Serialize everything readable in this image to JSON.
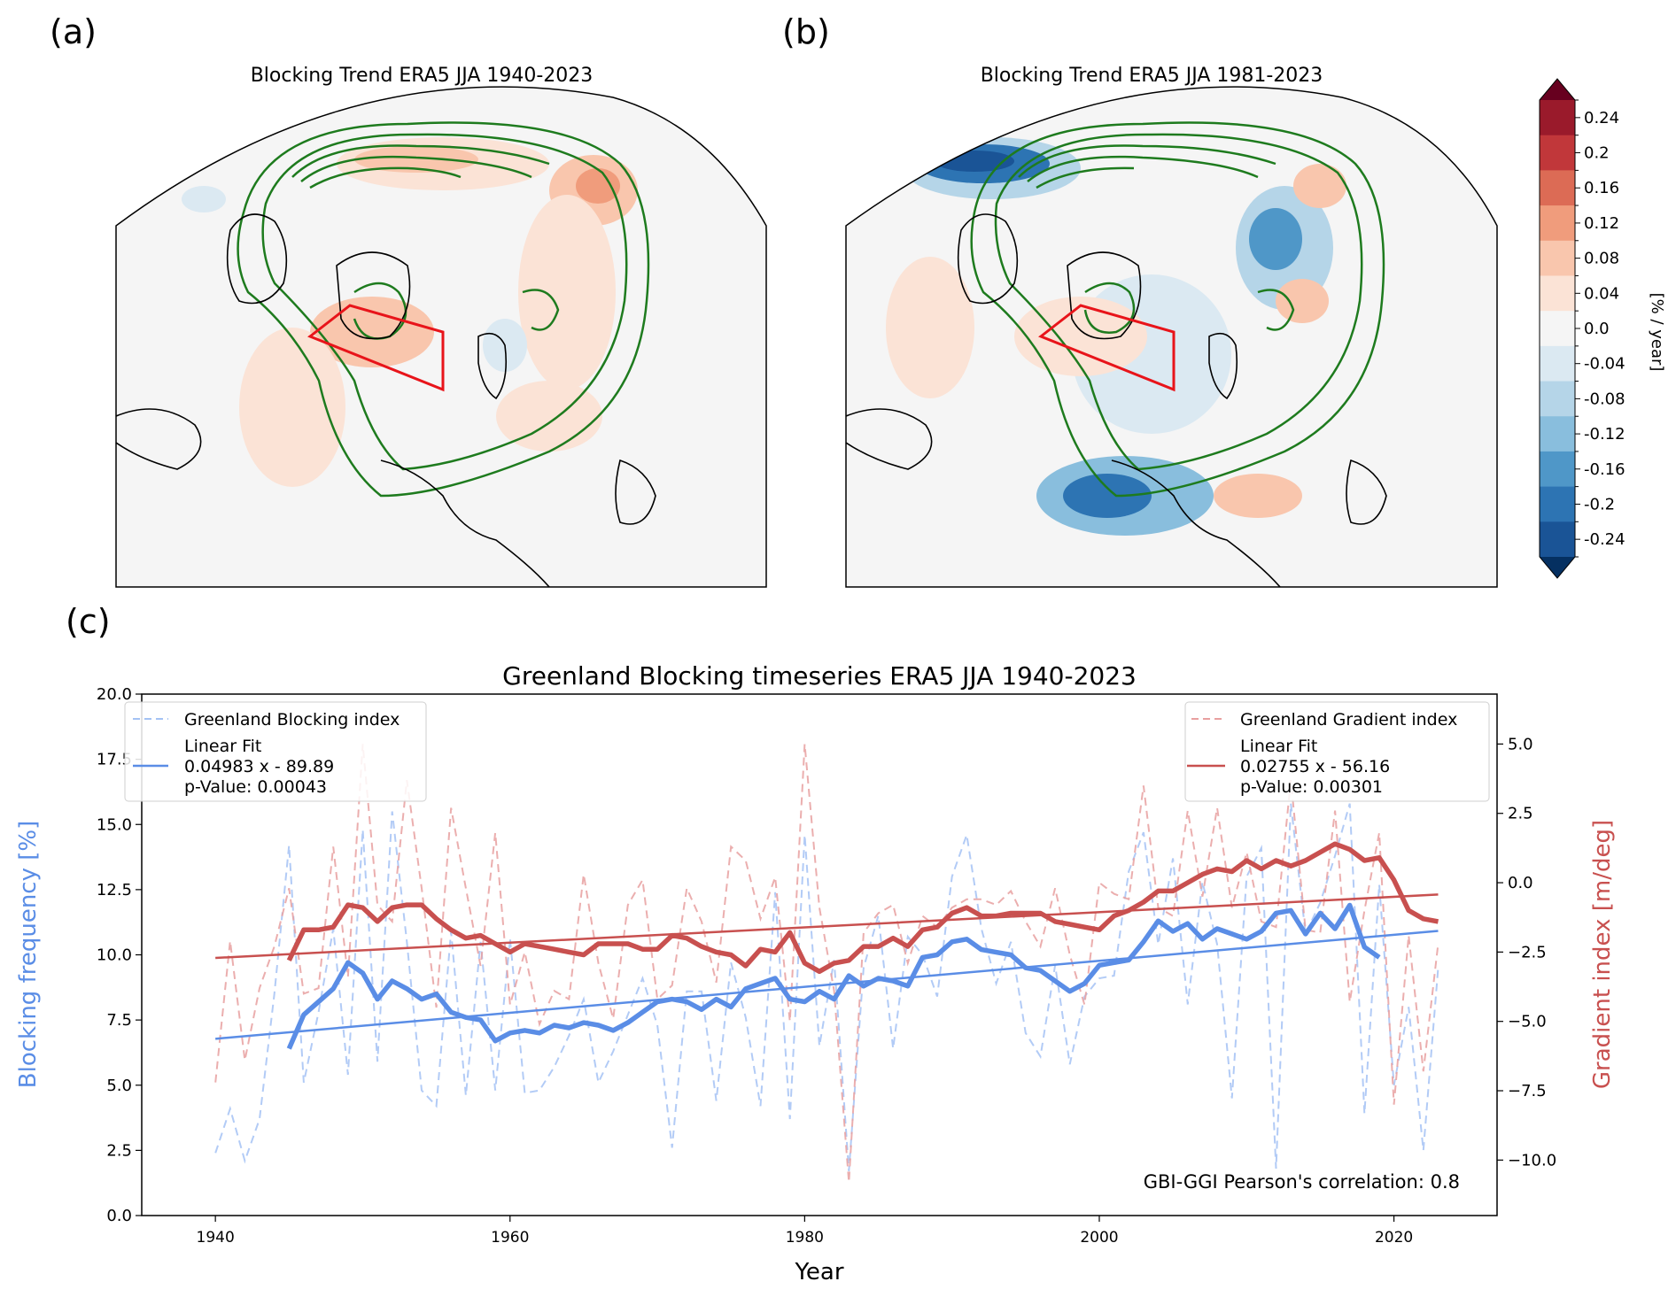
{
  "figure": {
    "panel_labels": [
      "(a)",
      "(b)",
      "(c)"
    ]
  },
  "chart_data": [
    {
      "id": "a",
      "type": "heatmap",
      "subtype": "polar-stereographic map",
      "title": "Blocking Trend ERA5 JJA 1940-2023",
      "overlays": [
        "green climatology contours",
        "red Greenland box",
        "black coastlines"
      ],
      "field_summary": "mostly weak positive trends (0.04-0.12) over Greenland box, Canada and Siberia; small weak negative areas near Scandinavia"
    },
    {
      "id": "b",
      "type": "heatmap",
      "subtype": "polar-stereographic map",
      "title": "Blocking Trend ERA5 JJA 1981-2023",
      "overlays": [
        "green climatology contours",
        "red Greenland box",
        "black coastlines"
      ],
      "field_summary": "strong negative trends (down to -0.24) over North Pacific/Alaska and Europe/Scandinavia; positive trends (0.04-0.12) over Greenland box and Siberia"
    },
    {
      "id": "colorbar",
      "type": "heatmap",
      "label": "[% / year]",
      "ticks": [
        "0.24",
        "0.2",
        "0.16",
        "0.12",
        "0.08",
        "0.04",
        "0.0",
        "-0.04",
        "-0.08",
        "-0.12",
        "-0.16",
        "-0.2",
        "-0.24"
      ],
      "levels": [
        0.26,
        0.22,
        0.18,
        0.14,
        0.1,
        0.06,
        0.02,
        -0.02,
        -0.06,
        -0.1,
        -0.14,
        -0.18,
        -0.22,
        -0.26
      ],
      "colors": [
        "#9a1a2b",
        "#c1373a",
        "#dc6b55",
        "#f09c7c",
        "#f9c6ad",
        "#fbe3d6",
        "#f5f5f5",
        "#dbe9f2",
        "#b5d5e8",
        "#89bedd",
        "#4f97c8",
        "#2d74b3",
        "#1a5496"
      ],
      "extend_colors": {
        "max": "#67001f",
        "min": "#053061"
      }
    },
    {
      "id": "c",
      "type": "line",
      "title": "Greenland Blocking timeseries ERA5 JJA 1940-2023",
      "xlabel": "Year",
      "ylabel": "Blocking frequency [%]",
      "y2label": "Gradient index [m/deg]",
      "xlim": [
        1935,
        2027
      ],
      "ylim": [
        0,
        20
      ],
      "y2lim": [
        -12.0,
        6.8
      ],
      "xticks": [
        1940,
        1960,
        1980,
        2000,
        2020
      ],
      "yticks": [
        "0.0",
        "2.5",
        "5.0",
        "7.5",
        "10.0",
        "12.5",
        "15.0",
        "17.5",
        "20.0"
      ],
      "y2ticks": [
        "−10.0",
        "−7.5",
        "−5.0",
        "−2.5",
        "0.0",
        "2.5",
        "5.0"
      ],
      "y2tick_values": [
        -10,
        -7.5,
        -5,
        -2.5,
        0,
        2.5,
        5
      ],
      "grid": false,
      "annotation": "GBI-GGI Pearson's correlation: 0.8",
      "legends": [
        {
          "position": "top-left",
          "entries": [
            {
              "label": "Greenland Blocking index",
              "style": "dashed",
              "color": "#a4c2f4"
            },
            {
              "label": "Linear Fit\n0.04983 x - 89.89\np-Value: 0.00043",
              "lines": [
                "Linear Fit",
                "0.04983 x - 89.89",
                "p-Value: 0.00043"
              ],
              "style": "solid",
              "color": "#5a8de6"
            }
          ]
        },
        {
          "position": "top-right",
          "entries": [
            {
              "label": "Greenland Gradient index",
              "style": "dashed",
              "color": "#e8a0a0"
            },
            {
              "label": "Linear Fit\n0.02755 x - 56.16\np-Value: 0.00301",
              "lines": [
                "Linear Fit",
                "0.02755 x - 56.16",
                "p-Value: 0.00301"
              ],
              "style": "solid",
              "color": "#c8504f"
            }
          ]
        }
      ],
      "x": [
        1940,
        1941,
        1942,
        1943,
        1944,
        1945,
        1946,
        1947,
        1948,
        1949,
        1950,
        1951,
        1952,
        1953,
        1954,
        1955,
        1956,
        1957,
        1958,
        1959,
        1960,
        1961,
        1962,
        1963,
        1964,
        1965,
        1966,
        1967,
        1968,
        1969,
        1970,
        1971,
        1972,
        1973,
        1974,
        1975,
        1976,
        1977,
        1978,
        1979,
        1980,
        1981,
        1982,
        1983,
        1984,
        1985,
        1986,
        1987,
        1988,
        1989,
        1990,
        1991,
        1992,
        1993,
        1994,
        1995,
        1996,
        1997,
        1998,
        1999,
        2000,
        2001,
        2002,
        2003,
        2004,
        2005,
        2006,
        2007,
        2008,
        2009,
        2010,
        2011,
        2012,
        2013,
        2014,
        2015,
        2016,
        2017,
        2018,
        2019,
        2020,
        2021,
        2022,
        2023
      ],
      "series": [
        {
          "name": "Greenland Blocking index",
          "axis": "left",
          "style": "dashed",
          "color": "#a4c2f4",
          "values": [
            2.4,
            4.1,
            2.1,
            3.7,
            8.5,
            14.2,
            5.1,
            7.8,
            11.0,
            5.4,
            14.8,
            5.9,
            15.5,
            10.5,
            4.8,
            4.2,
            10.9,
            4.6,
            10.5,
            4.8,
            10.6,
            4.7,
            4.8,
            5.7,
            6.9,
            8.3,
            5.1,
            6.3,
            7.7,
            9.1,
            7.3,
            2.6,
            8.6,
            8.6,
            4.4,
            9.7,
            7.6,
            4.2,
            12.4,
            3.7,
            14.6,
            6.5,
            9.8,
            1.7,
            9.5,
            11.5,
            6.4,
            10.7,
            10.0,
            8.4,
            13.0,
            14.6,
            11.0,
            8.9,
            10.5,
            7.0,
            6.1,
            9.6,
            5.8,
            8.4,
            9.1,
            9.2,
            13.2,
            14.7,
            10.4,
            13.7,
            8.1,
            12.8,
            10.4,
            4.5,
            13.0,
            14.1,
            1.8,
            15.8,
            10.8,
            12.0,
            13.8,
            15.8,
            3.9,
            12.7,
            5.0,
            8.0,
            2.5,
            9.5
          ]
        },
        {
          "name": "Greenland Blocking index (running mean)",
          "axis": "left",
          "style": "solid-thick",
          "color": "#5a8de6",
          "x_start": 1945,
          "values": [
            6.4,
            7.7,
            8.2,
            8.7,
            9.7,
            9.3,
            8.3,
            9.0,
            8.7,
            8.3,
            8.5,
            7.8,
            7.6,
            7.5,
            6.7,
            7.0,
            7.1,
            7.0,
            7.3,
            7.2,
            7.4,
            7.3,
            7.1,
            7.4,
            7.8,
            8.2,
            8.3,
            8.2,
            7.9,
            8.3,
            8.0,
            8.7,
            8.9,
            9.1,
            8.3,
            8.2,
            8.6,
            8.3,
            9.2,
            8.8,
            9.1,
            9.0,
            8.8,
            9.9,
            10.0,
            10.5,
            10.6,
            10.2,
            10.1,
            10.0,
            9.5,
            9.4,
            9.0,
            8.6,
            8.9,
            9.6,
            9.7,
            9.8,
            10.5,
            11.3,
            10.9,
            11.2,
            10.6,
            11.0,
            10.8,
            10.6,
            10.9,
            11.6,
            11.7,
            10.8,
            11.6,
            11.0,
            11.9,
            10.3,
            9.9
          ]
        },
        {
          "name": "Greenland Blocking linear fit",
          "axis": "left",
          "style": "solid",
          "color": "#5a8de6",
          "slope": 0.04983,
          "intercept": -89.89,
          "x_range": [
            1940,
            2023
          ]
        },
        {
          "name": "Greenland Gradient index",
          "axis": "right",
          "style": "dashed",
          "color": "#e8a0a0",
          "values": [
            -7.2,
            -2.1,
            -6.4,
            -3.8,
            -2.3,
            -0.2,
            -4.0,
            -3.8,
            1.3,
            -3.4,
            5.0,
            -0.8,
            -1.4,
            3.7,
            -0.2,
            -4.5,
            2.7,
            -0.2,
            -3.0,
            1.8,
            -4.4,
            -2.5,
            -5.1,
            -3.9,
            -4.2,
            0.3,
            -2.9,
            -4.9,
            -0.8,
            0.1,
            -4.2,
            -3.7,
            -0.2,
            -1.4,
            -3.6,
            1.3,
            0.8,
            -1.3,
            0.2,
            -5.0,
            5.0,
            -0.9,
            -3.9,
            -10.8,
            -1.8,
            -1.1,
            -0.8,
            -2.9,
            -1.2,
            -1.6,
            -0.9,
            -0.6,
            -0.6,
            -0.8,
            -0.3,
            -1.4,
            -2.3,
            -0.2,
            -2.6,
            -4.4,
            0.0,
            -0.4,
            -0.6,
            3.5,
            -0.9,
            -1.2,
            2.6,
            -0.5,
            2.7,
            -0.9,
            1.1,
            -1.4,
            -1.6,
            3.7,
            -1.7,
            -1.8,
            2.6,
            -4.3,
            -1.0,
            1.8,
            -8.0,
            -1.9,
            -6.8,
            -2.2
          ]
        },
        {
          "name": "Greenland Gradient index (running mean)",
          "axis": "right",
          "style": "solid-thick",
          "color": "#c8504f",
          "x_start": 1945,
          "values": [
            -2.8,
            -1.7,
            -1.7,
            -1.6,
            -0.8,
            -0.9,
            -1.4,
            -0.9,
            -0.8,
            -0.8,
            -1.3,
            -1.7,
            -2.0,
            -1.9,
            -2.2,
            -2.5,
            -2.2,
            -2.3,
            -2.4,
            -2.5,
            -2.6,
            -2.2,
            -2.2,
            -2.2,
            -2.4,
            -2.4,
            -1.9,
            -2.0,
            -2.3,
            -2.5,
            -2.6,
            -3.0,
            -2.4,
            -2.5,
            -1.8,
            -2.9,
            -3.2,
            -2.9,
            -2.8,
            -2.3,
            -2.3,
            -2.0,
            -2.3,
            -1.7,
            -1.6,
            -1.1,
            -0.9,
            -1.2,
            -1.2,
            -1.1,
            -1.1,
            -1.1,
            -1.4,
            -1.5,
            -1.6,
            -1.7,
            -1.2,
            -1.0,
            -0.7,
            -0.3,
            -0.3,
            0.0,
            0.3,
            0.5,
            0.4,
            0.8,
            0.5,
            0.8,
            0.6,
            0.8,
            1.1,
            1.4,
            1.2,
            0.8,
            0.9,
            0.1,
            -1.0,
            -1.3,
            -1.4
          ]
        },
        {
          "name": "Greenland Gradient linear fit",
          "axis": "right",
          "style": "solid",
          "color": "#c8504f",
          "slope": 0.02755,
          "intercept": -56.16,
          "x_range": [
            1940,
            2023
          ]
        }
      ]
    }
  ]
}
